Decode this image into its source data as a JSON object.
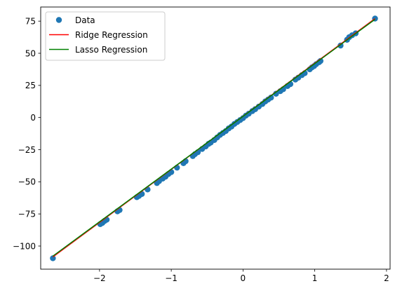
{
  "chart_data": {
    "type": "scatter",
    "title": "",
    "xlabel": "",
    "ylabel": "",
    "xlim": [
      -2.82,
      2.05
    ],
    "ylim": [
      -118,
      86
    ],
    "xticks": [
      -2,
      -1,
      0,
      1,
      2
    ],
    "yticks": [
      -100,
      -75,
      -50,
      -25,
      0,
      25,
      50,
      75
    ],
    "grid": false,
    "legend_position": "top-left",
    "legend": [
      "Data",
      "Ridge Regression",
      "Lasso Regression"
    ],
    "scatter_series": {
      "name": "Data",
      "color": "#1f77b4",
      "points": [
        [
          -2.65,
          -109.5
        ],
        [
          -1.99,
          -83.0
        ],
        [
          -1.96,
          -82.0
        ],
        [
          -1.93,
          -80.5
        ],
        [
          -1.9,
          -79.5
        ],
        [
          -1.75,
          -73.0
        ],
        [
          -1.72,
          -72.0
        ],
        [
          -1.48,
          -62.0
        ],
        [
          -1.45,
          -61.0
        ],
        [
          -1.41,
          -59.5
        ],
        [
          -1.33,
          -56.0
        ],
        [
          -1.2,
          -51.0
        ],
        [
          -1.17,
          -49.5
        ],
        [
          -1.12,
          -47.5
        ],
        [
          -1.08,
          -46.0
        ],
        [
          -1.04,
          -44.0
        ],
        [
          -1.0,
          -42.5
        ],
        [
          -0.92,
          -39.0
        ],
        [
          -0.83,
          -35.5
        ],
        [
          -0.8,
          -34.0
        ],
        [
          -0.7,
          -30.0
        ],
        [
          -0.67,
          -28.5
        ],
        [
          -0.63,
          -27.0
        ],
        [
          -0.57,
          -24.5
        ],
        [
          -0.52,
          -22.5
        ],
        [
          -0.48,
          -20.5
        ],
        [
          -0.45,
          -19.5
        ],
        [
          -0.4,
          -17.5
        ],
        [
          -0.36,
          -15.5
        ],
        [
          -0.32,
          -13.5
        ],
        [
          -0.28,
          -12.0
        ],
        [
          -0.24,
          -10.5
        ],
        [
          -0.2,
          -8.5
        ],
        [
          -0.16,
          -7.0
        ],
        [
          -0.12,
          -5.0
        ],
        [
          -0.08,
          -3.5
        ],
        [
          -0.04,
          -2.0
        ],
        [
          0.0,
          -0.5
        ],
        [
          0.04,
          1.5
        ],
        [
          0.08,
          3.0
        ],
        [
          0.13,
          5.0
        ],
        [
          0.17,
          6.5
        ],
        [
          0.22,
          8.5
        ],
        [
          0.27,
          10.5
        ],
        [
          0.31,
          12.5
        ],
        [
          0.35,
          14.0
        ],
        [
          0.39,
          15.5
        ],
        [
          0.46,
          18.5
        ],
        [
          0.52,
          20.5
        ],
        [
          0.56,
          22.0
        ],
        [
          0.62,
          24.5
        ],
        [
          0.66,
          26.0
        ],
        [
          0.73,
          29.5
        ],
        [
          0.77,
          31.0
        ],
        [
          0.82,
          33.0
        ],
        [
          0.86,
          34.5
        ],
        [
          0.93,
          37.5
        ],
        [
          0.96,
          39.0
        ],
        [
          0.99,
          40.0
        ],
        [
          1.02,
          41.5
        ],
        [
          1.06,
          43.0
        ],
        [
          1.08,
          44.0
        ],
        [
          1.36,
          56.0
        ],
        [
          1.45,
          60.5
        ],
        [
          1.48,
          62.5
        ],
        [
          1.52,
          64.0
        ],
        [
          1.57,
          65.5
        ],
        [
          1.84,
          77.0
        ]
      ]
    },
    "line_series": [
      {
        "name": "Ridge Regression",
        "color": "#ff0000",
        "x": [
          -2.65,
          1.84
        ],
        "y": [
          -108.5,
          77.0
        ]
      },
      {
        "name": "Lasso Regression",
        "color": "#008000",
        "x": [
          -2.65,
          1.84
        ],
        "y": [
          -107.8,
          76.4
        ]
      }
    ]
  }
}
